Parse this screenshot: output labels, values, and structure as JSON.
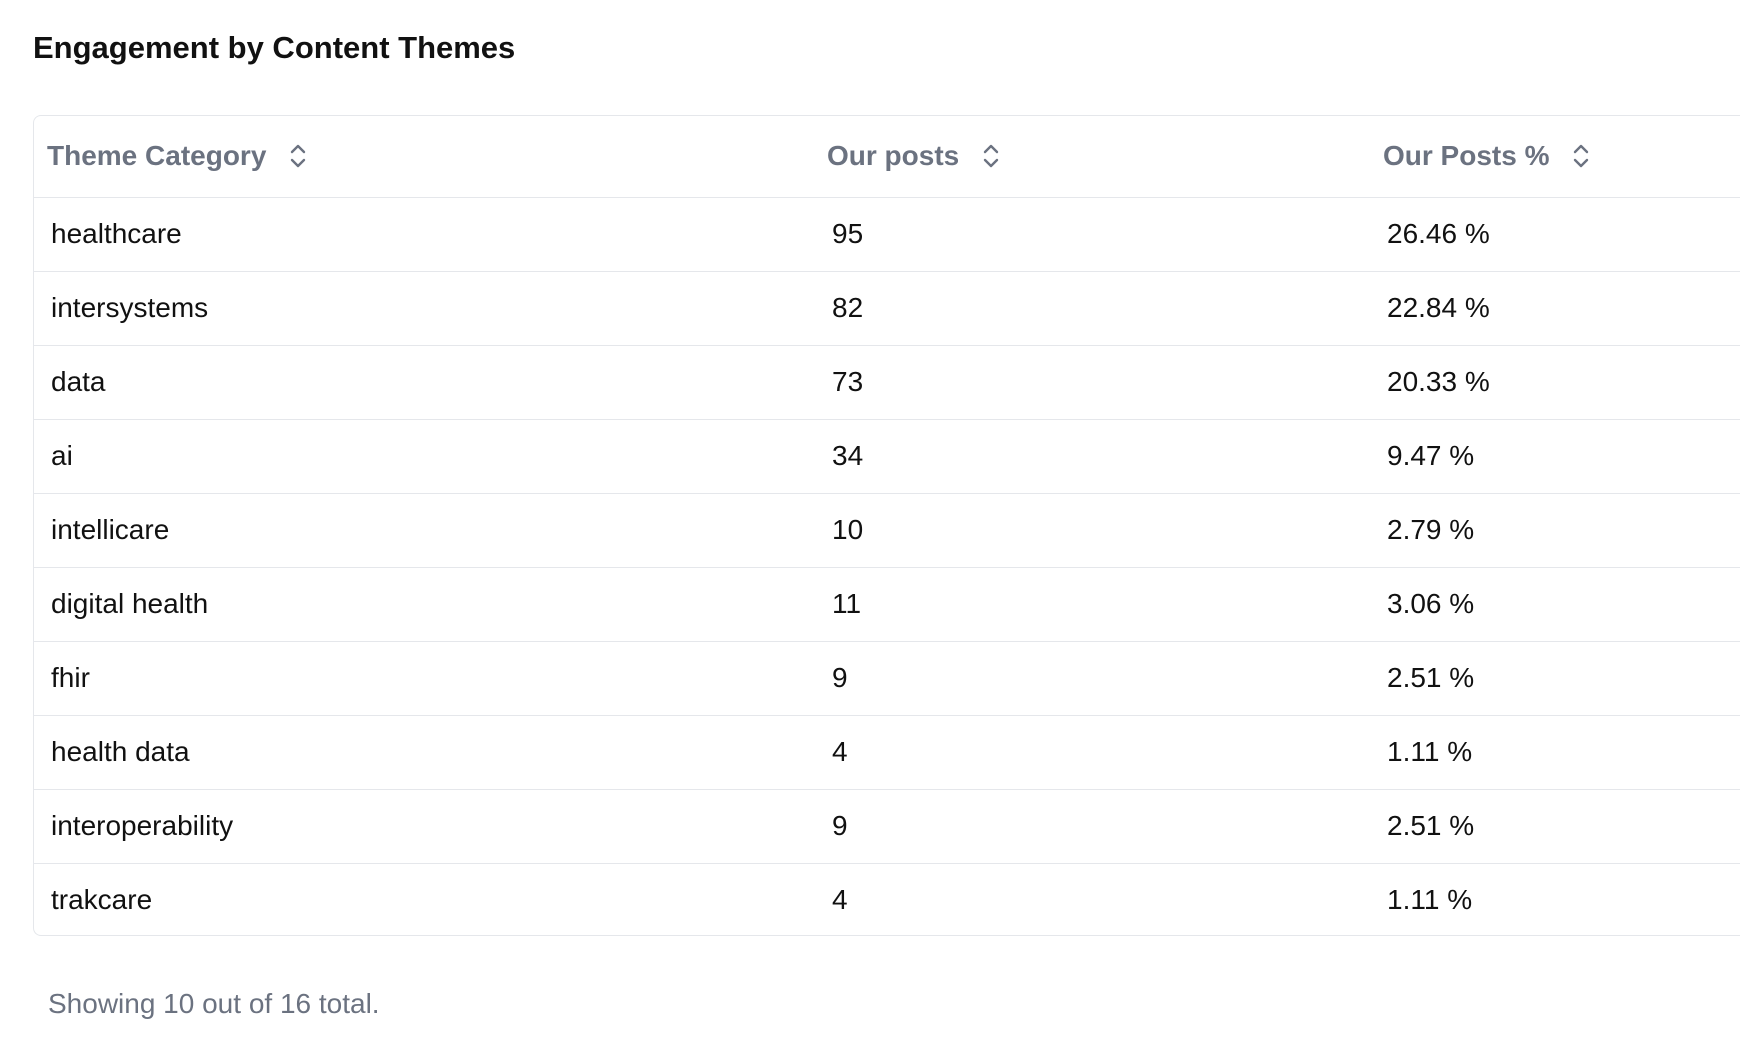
{
  "page": {
    "title": "Engagement by Content Themes",
    "footer_text": "Showing 10 out of 16 total."
  },
  "table": {
    "headers": [
      {
        "label": "Theme Category",
        "icon": "sort-icon"
      },
      {
        "label": "Our posts",
        "icon": "sort-icon"
      },
      {
        "label": "Our Posts %",
        "icon": "sort-icon"
      }
    ],
    "rows": [
      {
        "theme": "healthcare",
        "posts": "95",
        "percent": "26.46 %"
      },
      {
        "theme": "intersystems",
        "posts": "82",
        "percent": "22.84 %"
      },
      {
        "theme": "data",
        "posts": "73",
        "percent": "20.33 %"
      },
      {
        "theme": "ai",
        "posts": "34",
        "percent": "9.47 %"
      },
      {
        "theme": "intellicare",
        "posts": "10",
        "percent": "2.79 %"
      },
      {
        "theme": "digital health",
        "posts": "11",
        "percent": "3.06 %"
      },
      {
        "theme": "fhir",
        "posts": "9",
        "percent": "2.51 %"
      },
      {
        "theme": "health data",
        "posts": "4",
        "percent": "1.11 %"
      },
      {
        "theme": "interoperability",
        "posts": "9",
        "percent": "2.51 %"
      },
      {
        "theme": "trakcare",
        "posts": "4",
        "percent": "1.11 %"
      }
    ]
  },
  "colors": {
    "header_text": "#6b7280",
    "body_text": "#111111",
    "border": "#e5e7eb",
    "footer_text": "#6b7280"
  }
}
